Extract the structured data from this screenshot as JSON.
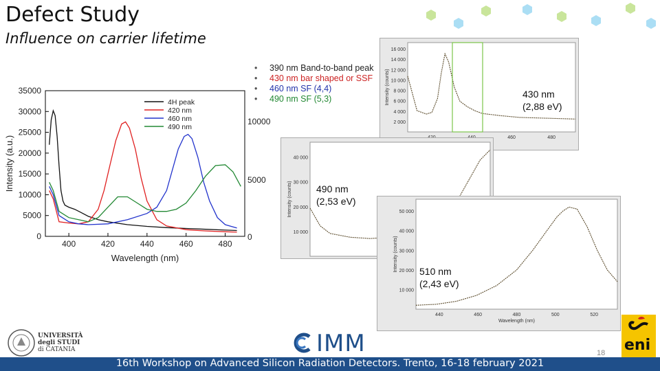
{
  "slide": {
    "title": "Defect Study",
    "subtitle": "Influence on carrier lifetime",
    "footer": "16th Workshop on Advanced Silicon Radiation Detectors. Trento, 16-18 february 2021",
    "page_number": "18",
    "logos": {
      "imm": "IMM",
      "unict": [
        "UNIVERSITÀ",
        "degli STUDI",
        "di CATANIA"
      ],
      "eni": "eni"
    },
    "colors": {
      "footer_bar": "#1f4f8a",
      "accent_green": "#8bc34a",
      "accent_blue": "#4fc3f7"
    }
  },
  "bullets": [
    {
      "text": "390 nm Band-to-band peak",
      "color": "#222222"
    },
    {
      "text": "430 nm bar shaped or SSF",
      "color": "#cc2222"
    },
    {
      "text": "460 nm SF (4,4)",
      "color": "#2233aa"
    },
    {
      "text": "490 nm SF (5,3)",
      "color": "#228833"
    }
  ],
  "right_axis_ticks": [
    "10000",
    "5000",
    "0"
  ],
  "insets": [
    {
      "label_line1": "430 nm",
      "label_line2": "(2,88 eV)"
    },
    {
      "label_line1": "490 nm",
      "label_line2": "(2,53 eV)"
    },
    {
      "label_line1": "510 nm",
      "label_line2": "(2,43 eV)"
    }
  ],
  "chart_data": [
    {
      "type": "line",
      "xlabel": "Wavelength (nm)",
      "ylabel": "Intensity (a.u.)",
      "xlim": [
        388,
        490
      ],
      "ylim": [
        0,
        35000
      ],
      "x_ticks": [
        400,
        420,
        440,
        460,
        480
      ],
      "y_ticks": [
        0,
        5000,
        10000,
        15000,
        20000,
        25000,
        30000,
        35000
      ],
      "legend_position": "top-right",
      "series": [
        {
          "name": "4H peak",
          "color": "#111111",
          "x": [
            390,
            391,
            392,
            393,
            394,
            395,
            396,
            397,
            398,
            400,
            403,
            406,
            410,
            415,
            420,
            430,
            440,
            450,
            460,
            470,
            480,
            486
          ],
          "y": [
            22000,
            28000,
            30200,
            29000,
            24000,
            17000,
            11000,
            8500,
            7500,
            7000,
            6500,
            5800,
            4800,
            4000,
            3500,
            2800,
            2400,
            2100,
            1900,
            1700,
            1500,
            1400
          ]
        },
        {
          "name": "420 nm",
          "color": "#e02020",
          "x": [
            390,
            392,
            395,
            400,
            405,
            410,
            415,
            418,
            421,
            424,
            427,
            429,
            431,
            434,
            437,
            440,
            445,
            450,
            460,
            470,
            480,
            486
          ],
          "y": [
            11000,
            9000,
            3500,
            3200,
            3000,
            3500,
            6500,
            11000,
            17000,
            23000,
            27000,
            27500,
            26000,
            21000,
            14000,
            8500,
            4000,
            2500,
            1600,
            1300,
            1100,
            1000
          ]
        },
        {
          "name": "460 nm",
          "color": "#2233cc",
          "x": [
            390,
            392,
            395,
            400,
            405,
            410,
            420,
            430,
            440,
            445,
            450,
            453,
            456,
            459,
            461,
            463,
            466,
            469,
            472,
            476,
            480,
            486
          ],
          "y": [
            12000,
            10000,
            5000,
            3500,
            3000,
            2800,
            3000,
            4000,
            5500,
            7000,
            11000,
            16000,
            21000,
            24000,
            24500,
            23500,
            19000,
            13000,
            8500,
            4500,
            2800,
            2000
          ]
        },
        {
          "name": "490 nm",
          "color": "#228833",
          "x": [
            390,
            392,
            395,
            400,
            405,
            410,
            415,
            420,
            425,
            430,
            435,
            440,
            445,
            450,
            455,
            460,
            465,
            470,
            475,
            480,
            484,
            488
          ],
          "y": [
            13000,
            11000,
            6000,
            4500,
            4000,
            3500,
            4500,
            7000,
            9500,
            9500,
            8000,
            6500,
            6000,
            6000,
            6500,
            8000,
            11000,
            14500,
            17000,
            17200,
            15500,
            12000
          ]
        }
      ]
    },
    {
      "type": "line",
      "ylabel": "Intensity (counts)",
      "y_ticks": [
        "2 000",
        "4 000",
        "6 000",
        "8 000",
        "10 000",
        "12 000",
        "14 000",
        "16 000"
      ],
      "x_ticks": [
        "420",
        "440",
        "460",
        "480"
      ],
      "series": [
        {
          "name": "",
          "color": "#5a4a2a",
          "x": [
            400,
            405,
            410,
            413,
            416,
            418,
            420,
            422,
            425,
            428,
            432,
            436,
            440,
            450,
            460,
            470,
            480,
            490
          ],
          "y": [
            10000,
            3800,
            3200,
            3500,
            6000,
            10500,
            14000,
            12500,
            8000,
            5500,
            4500,
            3800,
            3300,
            2900,
            2600,
            2500,
            2400,
            2300
          ]
        }
      ]
    },
    {
      "type": "line",
      "ylabel": "Intensity (counts)",
      "y_ticks": [
        "10 000",
        "20 000",
        "30 000",
        "40 000"
      ],
      "series": [
        {
          "name": "",
          "color": "#5a4a2a",
          "x": [
            400,
            405,
            410,
            420,
            430,
            440,
            450,
            460,
            470,
            475,
            480,
            485,
            490
          ],
          "y": [
            19000,
            12000,
            9000,
            7500,
            7000,
            7500,
            9000,
            12000,
            18000,
            24000,
            31000,
            38000,
            42000
          ]
        }
      ]
    },
    {
      "type": "line",
      "xlabel": "Wavelength (nm)",
      "ylabel": "Intensity (counts)",
      "y_ticks": [
        "10 000",
        "20 000",
        "30 000",
        "40 000",
        "50 000"
      ],
      "x_ticks": [
        "440",
        "460",
        "480",
        "500",
        "520"
      ],
      "series": [
        {
          "name": "",
          "color": "#5a4a2a",
          "x": [
            430,
            440,
            450,
            460,
            470,
            480,
            488,
            495,
            500,
            503,
            506,
            510,
            515,
            520,
            525,
            530
          ],
          "y": [
            2000,
            2500,
            4000,
            7000,
            12000,
            20000,
            30000,
            40000,
            47000,
            50000,
            52000,
            51000,
            42000,
            30000,
            20000,
            14000
          ]
        }
      ]
    }
  ]
}
